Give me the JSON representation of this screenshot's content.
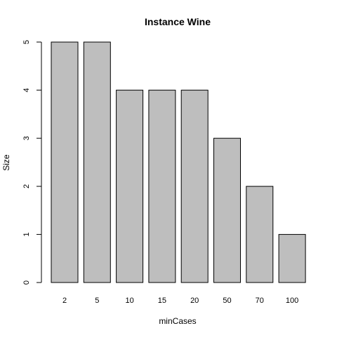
{
  "chart_data": {
    "type": "bar",
    "title": "Instance Wine",
    "xlabel": "minCases",
    "ylabel": "Size",
    "categories": [
      "2",
      "5",
      "10",
      "15",
      "20",
      "50",
      "70",
      "100"
    ],
    "values": [
      5,
      5,
      4,
      4,
      4,
      3,
      2,
      1
    ],
    "ylim": [
      0,
      5
    ],
    "yticks": [
      "0",
      "1",
      "2",
      "3",
      "4",
      "5"
    ],
    "grid": false,
    "bar_color": "#bebebe",
    "bar_edge_color": "#000000"
  }
}
